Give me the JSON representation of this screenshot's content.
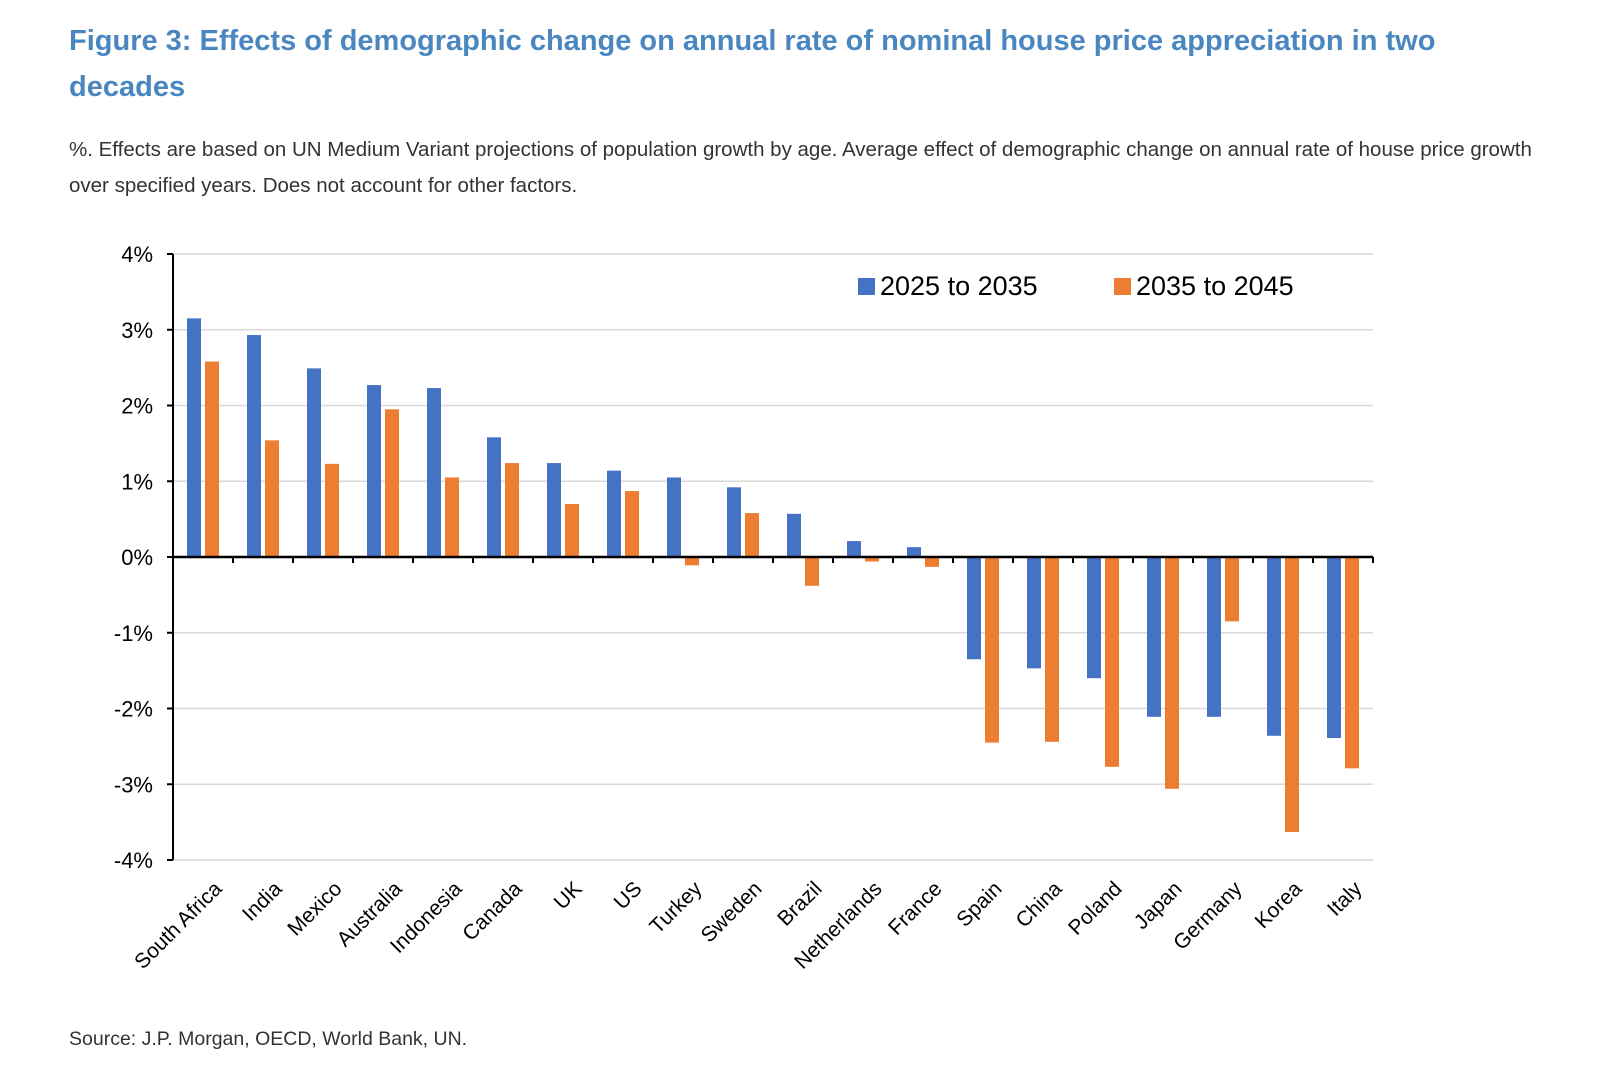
{
  "figure": {
    "title": "Figure 3: Effects of demographic change on annual rate of nominal house price appreciation in two decades",
    "subtitle": "%. Effects are based on UN Medium Variant projections of population growth by age. Average effect of demographic change on annual rate of house price growth over specified years. Does not account for other factors.",
    "source": "Source: J.P. Morgan, OECD, World Bank, UN."
  },
  "colors": {
    "series_1": "#4472c4",
    "series_2": "#ed7d31",
    "grid": "#d9d9d9",
    "axis": "#000000",
    "title": "#4a86c0"
  },
  "chart_data": {
    "type": "bar",
    "categories": [
      "South Africa",
      "India",
      "Mexico",
      "Australia",
      "Indonesia",
      "Canada",
      "UK",
      "US",
      "Turkey",
      "Sweden",
      "Brazil",
      "Netherlands",
      "France",
      "Spain",
      "China",
      "Poland",
      "Japan",
      "Germany",
      "Korea",
      "Italy"
    ],
    "series": [
      {
        "name": "2025 to 2035",
        "values": [
          3.15,
          2.93,
          2.49,
          2.27,
          2.23,
          1.58,
          1.24,
          1.14,
          1.05,
          0.92,
          0.57,
          0.21,
          0.13,
          -1.35,
          -1.47,
          -1.6,
          -2.11,
          -2.11,
          -2.36,
          -2.39
        ]
      },
      {
        "name": "2035 to 2045",
        "values": [
          2.58,
          1.54,
          1.23,
          1.95,
          1.05,
          1.24,
          0.7,
          0.87,
          -0.11,
          0.58,
          -0.38,
          -0.06,
          -0.13,
          -2.45,
          -2.44,
          -2.77,
          -3.06,
          -0.85,
          -3.63,
          -2.79
        ]
      }
    ],
    "ylim": [
      -4,
      4
    ],
    "yticks": [
      4,
      3,
      2,
      1,
      0,
      -1,
      -2,
      -3,
      -4
    ],
    "ytick_labels": [
      "4%",
      "3%",
      "2%",
      "1%",
      "0%",
      "-1%",
      "-2%",
      "-3%",
      "-4%"
    ],
    "xlabel": "",
    "ylabel": "",
    "grid": true,
    "legend_position": "top-right"
  }
}
